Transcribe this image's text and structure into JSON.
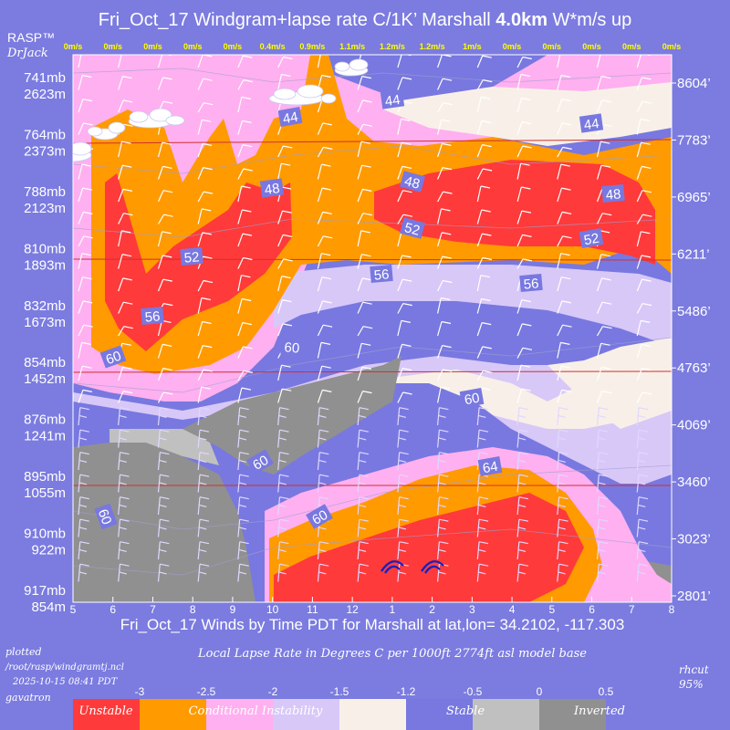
{
  "chart_data": {
    "type": "heatmap",
    "title": "Fri_Oct_17 Windgram+lapse rate C/1K’  Marshall ",
    "title_bold": "4.0km",
    "title_tail": "  W*m/s up",
    "xlabel": "Fri_Oct_17 Winds by Time PDT for Marshall at lat,lon= 34.2102, -117.303",
    "x_ticks": [
      "5",
      "6",
      "7",
      "8",
      "9",
      "10",
      "11",
      "12",
      "1",
      "2",
      "3",
      "4",
      "5",
      "6",
      "7",
      "8"
    ],
    "updraft_labels": [
      "0m/s",
      "0m/s",
      "0m/s",
      "0m/s",
      "0m/s",
      "0.4m/s",
      "0.9m/s",
      "1.1m/s",
      "1.2m/s",
      "1.2m/s",
      "1m/s",
      "0m/s",
      "0m/s",
      "0m/s",
      "0m/s",
      "0m/s"
    ],
    "y_left_mb": [
      "741mb",
      "764mb",
      "788mb",
      "810mb",
      "832mb",
      "854mb",
      "876mb",
      "895mb",
      "910mb",
      "917mb"
    ],
    "y_left_m": [
      "2623m",
      "2373m",
      "2123m",
      "1893m",
      "1673m",
      "1452m",
      "1241m",
      "1055m",
      "922m",
      "854m"
    ],
    "y_right_ft": [
      "8604’",
      "7783’",
      "6965’",
      "6211’",
      "5486’",
      "4763’",
      "4069’",
      "3460’",
      "3023’",
      "2801’"
    ],
    "contour_labels": [
      "44",
      "44",
      "44",
      "48",
      "48",
      "48",
      "52",
      "52",
      "52",
      "56",
      "56",
      "56",
      "60",
      "60",
      "60",
      "60",
      "60",
      "60",
      "64"
    ],
    "colorbar": {
      "title": "Local Lapse Rate in Degrees C per 1000ft   2774ft asl model base",
      "ticks": [
        "-3",
        "-2.5",
        "-2",
        "-1.5",
        "-1.2",
        "-0.5",
        "0",
        "0.5"
      ],
      "categories": [
        "Unstable",
        "Conditional Instability",
        "Stable",
        "Inverted"
      ],
      "colors": [
        "#ff3a3a",
        "#ff9a00",
        "#ffb0f0",
        "#d8c8f8",
        "#f8f0e8",
        "#7878e0",
        "#c0c0c0",
        "#909090"
      ]
    }
  },
  "brand": {
    "name": "RASP™",
    "author": "DrJack"
  },
  "footer": {
    "plotted_1": "plotted",
    "plotted_2": "/root/rasp/windgramtj.ncl",
    "timestamp": "2025-10-15 08:41 PDT",
    "user": "gavatron",
    "rhcut": "rhcut",
    "rhcut_value": "95%"
  }
}
